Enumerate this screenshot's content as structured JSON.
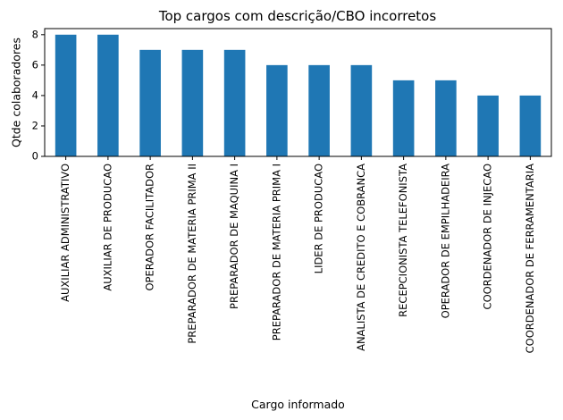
{
  "chart_data": {
    "type": "bar",
    "title": "Top cargos com descrição/CBO incorretos",
    "xlabel": "Cargo informado",
    "ylabel": "Qtde colaboradores",
    "categories": [
      "AUXILIAR ADMINISTRATIVO",
      "AUXILIAR DE PRODUCAO",
      "OPERADOR FACILITADOR",
      "PREPARADOR DE MATERIA PRIMA II",
      "PREPARADOR DE MAQUINA I",
      "PREPARADOR DE MATERIA PRIMA I",
      "LIDER DE PRODUCAO",
      "ANALISTA DE CREDITO E COBRANCA",
      "RECEPCIONISTA TELEFONISTA",
      "OPERADOR DE EMPILHADEIRA",
      "COORDENADOR DE INJECAO",
      "COORDENADOR DE FERRAMENTARIA"
    ],
    "values": [
      8,
      8,
      7,
      7,
      7,
      6,
      6,
      6,
      5,
      5,
      4,
      4
    ],
    "ylim": [
      0,
      8.4
    ],
    "yticks": [
      0,
      2,
      4,
      6,
      8
    ],
    "grid": false,
    "legend": "none",
    "bar_color": "#1f77b4"
  }
}
